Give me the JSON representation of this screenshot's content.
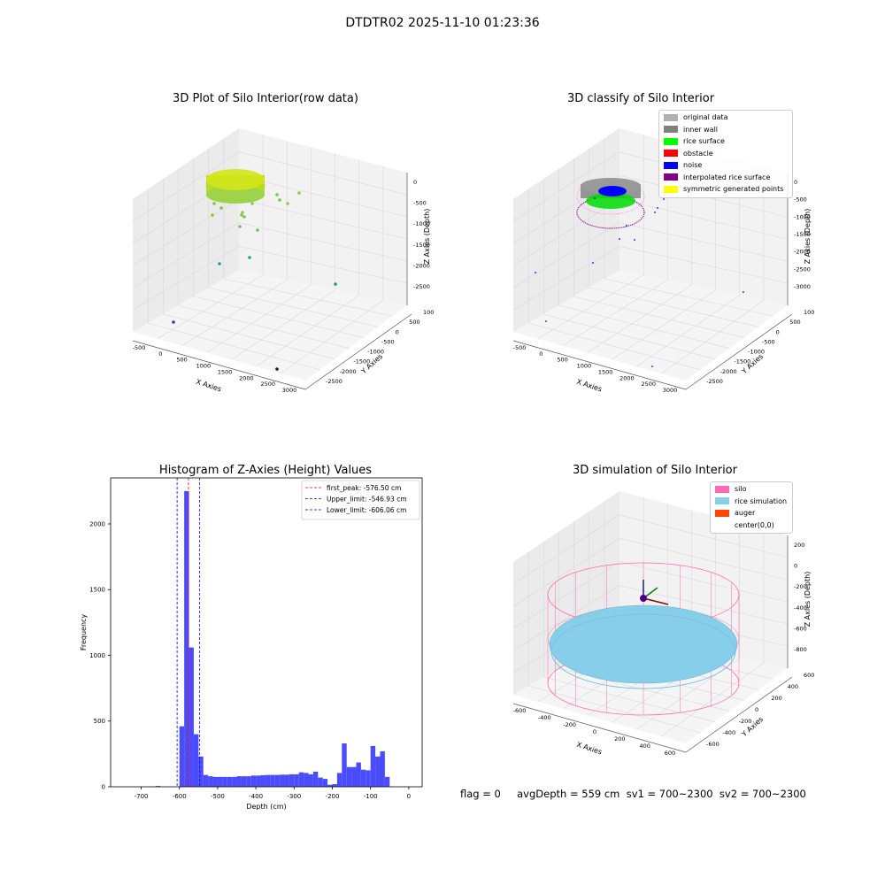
{
  "figure": {
    "suptitle": "DTDTR02 2025-11-10 01:23:36",
    "footer": "flag = 0     avgDepth = 559 cm  sv1 = 700~2300  sv2 = 700~2300"
  },
  "colors": {
    "hist_bar": "#4c4cff",
    "first_peak": "#ff0000",
    "limits": "#0000ff",
    "silo": "#ff69b4",
    "rice": "#87ceeb",
    "auger": "#ff4500",
    "original": "#b0b0b0",
    "inner_wall": "#808080",
    "rice_surface": "#00ff00",
    "obstacle": "#ff0000",
    "noise": "#0000ff",
    "interp": "#800080",
    "symmetric": "#ffff00"
  },
  "panels": {
    "raw": {
      "title": "3D Plot of Silo Interior(row data)",
      "xlabel": "X Axies",
      "ylabel": "Y Axies",
      "zlabel": "Z Axies (Depth)",
      "xticks": [
        "-500",
        "0",
        "500",
        "1000",
        "1500",
        "2000",
        "2500",
        "3000"
      ],
      "yticks": [
        "1000",
        "500",
        "0",
        "-500",
        "-1000",
        "-1500",
        "-2000",
        "-2500"
      ],
      "zticks": [
        "0",
        "-500",
        "-1000",
        "-1500",
        "-2000",
        "-2500"
      ]
    },
    "classify": {
      "title": "3D classify of Silo Interior",
      "xlabel": "X Axies",
      "ylabel": "Y Axies",
      "zlabel": "Z Axies (Depth)",
      "xticks": [
        "-500",
        "0",
        "500",
        "1000",
        "1500",
        "2000",
        "2500",
        "3000"
      ],
      "yticks": [
        "1000",
        "500",
        "0",
        "-500",
        "-1000",
        "-1500",
        "-2000",
        "-2500"
      ],
      "zticks": [
        "0",
        "-500",
        "-1000",
        "-1500",
        "-2000",
        "-2500",
        "-3000"
      ],
      "legend": [
        {
          "label": "original data",
          "color": "#b0b0b0"
        },
        {
          "label": "inner wall",
          "color": "#808080"
        },
        {
          "label": "rice surface",
          "color": "#00ff00"
        },
        {
          "label": "obstacle",
          "color": "#ff0000"
        },
        {
          "label": "noise",
          "color": "#0000ff"
        },
        {
          "label": "interpolated rice surface",
          "color": "#800080"
        },
        {
          "label": "symmetric generated points",
          "color": "#ffff00"
        }
      ]
    },
    "sim": {
      "title": "3D simulation of Silo Interior",
      "xlabel": "X Axies",
      "ylabel": "Y Axies",
      "zlabel": "Z Axies (Depth)",
      "xticks": [
        "-600",
        "-400",
        "-200",
        "0",
        "200",
        "400",
        "600"
      ],
      "yticks": [
        "600",
        "400",
        "200",
        "0",
        "-200",
        "-400",
        "-600"
      ],
      "zticks": [
        "200",
        "0",
        "-200",
        "-400",
        "-600",
        "-800"
      ],
      "legend": [
        {
          "label": "silo",
          "color": "#ff69b4"
        },
        {
          "label": "rice simulation",
          "color": "#87ceeb"
        },
        {
          "label": "auger",
          "color": "#ff4500"
        },
        {
          "label": "center(0,0)",
          "color": "#ffffff"
        }
      ]
    }
  },
  "chart_data": [
    {
      "type": "bar",
      "title": "Histogram of Z-Axies (Height) Values",
      "xlabel": "Depth (cm)",
      "ylabel": "Frequency",
      "xlim": [
        -780,
        35
      ],
      "ylim": [
        0,
        2350
      ],
      "xticks": [
        -700,
        -600,
        -500,
        -400,
        -300,
        -200,
        -100,
        0
      ],
      "yticks": [
        0,
        500,
        1000,
        1500,
        2000
      ],
      "bin_width": 12.5,
      "bins": [
        [
          -662.5,
          6
        ],
        [
          -600,
          460
        ],
        [
          -587.5,
          2250
        ],
        [
          -575,
          1060
        ],
        [
          -562.5,
          400
        ],
        [
          -550,
          230
        ],
        [
          -537.5,
          90
        ],
        [
          -525,
          80
        ],
        [
          -512.5,
          75
        ],
        [
          -500,
          75
        ],
        [
          -487.5,
          75
        ],
        [
          -475,
          75
        ],
        [
          -462.5,
          75
        ],
        [
          -450,
          80
        ],
        [
          -437.5,
          80
        ],
        [
          -425,
          80
        ],
        [
          -412.5,
          85
        ],
        [
          -400,
          85
        ],
        [
          -387.5,
          88
        ],
        [
          -375,
          90
        ],
        [
          -362.5,
          90
        ],
        [
          -350,
          90
        ],
        [
          -337.5,
          92
        ],
        [
          -325,
          92
        ],
        [
          -312.5,
          95
        ],
        [
          -300,
          95
        ],
        [
          -287.5,
          110
        ],
        [
          -275,
          105
        ],
        [
          -262.5,
          95
        ],
        [
          -250,
          115
        ],
        [
          -237.5,
          70
        ],
        [
          -225,
          60
        ],
        [
          -212.5,
          15
        ],
        [
          -200,
          20
        ],
        [
          -187.5,
          105
        ],
        [
          -175,
          330
        ],
        [
          -162.5,
          150
        ],
        [
          -150,
          150
        ],
        [
          -137.5,
          185
        ],
        [
          -125,
          130
        ],
        [
          -112.5,
          125
        ],
        [
          -100,
          310
        ],
        [
          -87.5,
          230
        ],
        [
          -75,
          270
        ],
        [
          -62.5,
          75
        ]
      ],
      "lines": [
        {
          "name": "first_peak: -576.50 cm",
          "x": -576.5,
          "color": "#ff0000"
        },
        {
          "name": "Upper_limit: -546.93 cm",
          "x": -546.93,
          "color": "#0000ff"
        },
        {
          "name": "Lower_limit: -606.06 cm",
          "x": -606.06,
          "color": "#0000ff"
        }
      ],
      "legend_position": "top-right"
    }
  ]
}
